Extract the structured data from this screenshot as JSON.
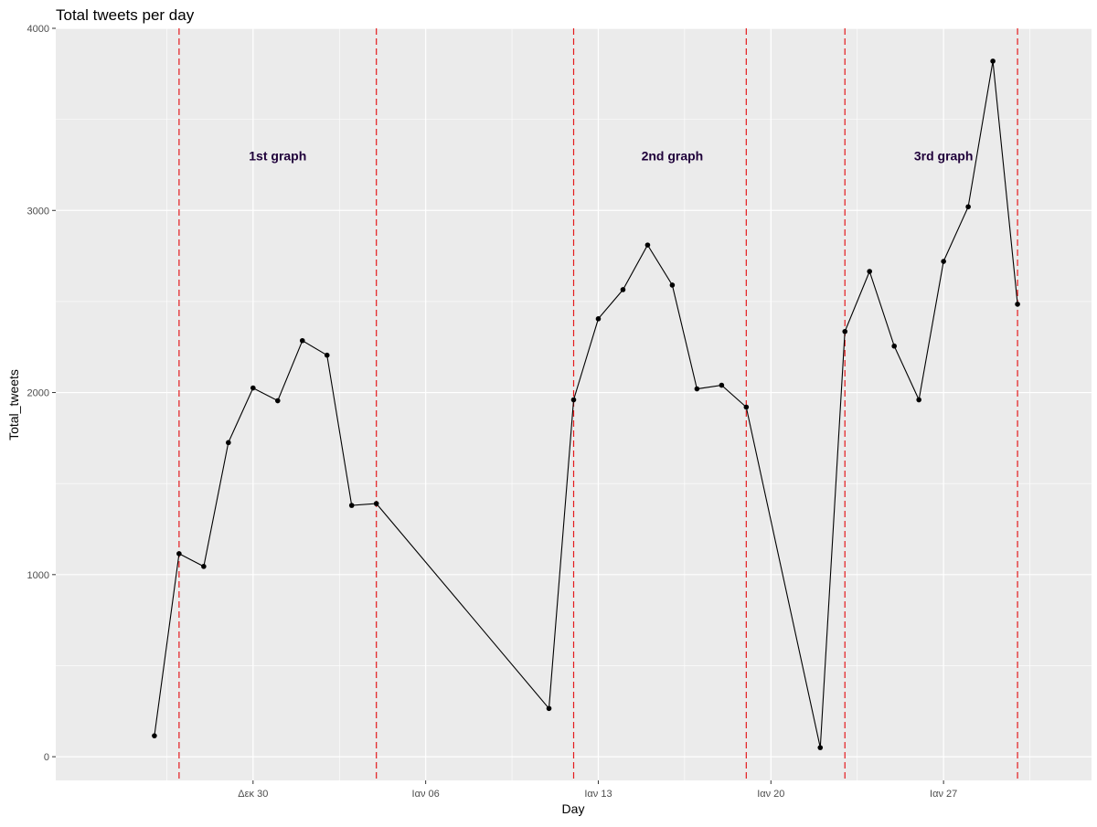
{
  "chart_data": {
    "type": "line",
    "title": "Total tweets per day",
    "xlabel": "Day",
    "ylabel": "Total_tweets",
    "x_tick_labels": [
      "Δεκ 30",
      "Ιαν 06",
      "Ιαν 13",
      "Ιαν 20",
      "Ιαν 27"
    ],
    "x_tick_dates": [
      "2019-12-30",
      "2020-01-06",
      "2020-01-13",
      "2020-01-20",
      "2020-01-27"
    ],
    "xlim": [
      "2019-12-22",
      "2020-02-02"
    ],
    "ylim": [
      -130,
      4000
    ],
    "y_ticks": [
      0,
      1000,
      2000,
      3000,
      4000
    ],
    "y_tick_labels": [
      "0",
      "1000",
      "2000",
      "3000",
      "4000"
    ],
    "grid": true,
    "series": [
      {
        "x": [
          "2019-12-26",
          "2019-12-27",
          "2019-12-28",
          "2019-12-29",
          "2019-12-30",
          "2019-12-31",
          "2020-01-01",
          "2020-01-02",
          "2020-01-03",
          "2020-01-04",
          "2020-01-11",
          "2020-01-12",
          "2020-01-13",
          "2020-01-14",
          "2020-01-15",
          "2020-01-16",
          "2020-01-17",
          "2020-01-18",
          "2020-01-19",
          "2020-01-22",
          "2020-01-23",
          "2020-01-24",
          "2020-01-25",
          "2020-01-26",
          "2020-01-27",
          "2020-01-28",
          "2020-01-29",
          "2020-01-30"
        ],
        "values": [
          115,
          1115,
          1045,
          1725,
          2025,
          1955,
          2285,
          2205,
          1380,
          1390,
          265,
          1960,
          2405,
          2565,
          2810,
          2590,
          2020,
          2040,
          1920,
          50,
          2335,
          2665,
          2255,
          1960,
          2720,
          3020,
          3820,
          2485
        ]
      }
    ],
    "vlines": [
      "2019-12-27",
      "2020-01-04",
      "2020-01-12",
      "2020-01-19",
      "2020-01-23",
      "2020-01-30"
    ],
    "annotations": [
      {
        "text": "1st graph",
        "x": "2019-12-31",
        "y": 3300
      },
      {
        "text": "2nd graph",
        "x": "2020-01-16",
        "y": 3300
      },
      {
        "text": "3rd graph",
        "x": "2020-01-27",
        "y": 3300
      }
    ],
    "colors": {
      "panel_background": "#ebebeb",
      "grid": "#ffffff",
      "line": "#000000",
      "vline": "#e41a1c",
      "annotation_text": "#1f003a"
    }
  }
}
